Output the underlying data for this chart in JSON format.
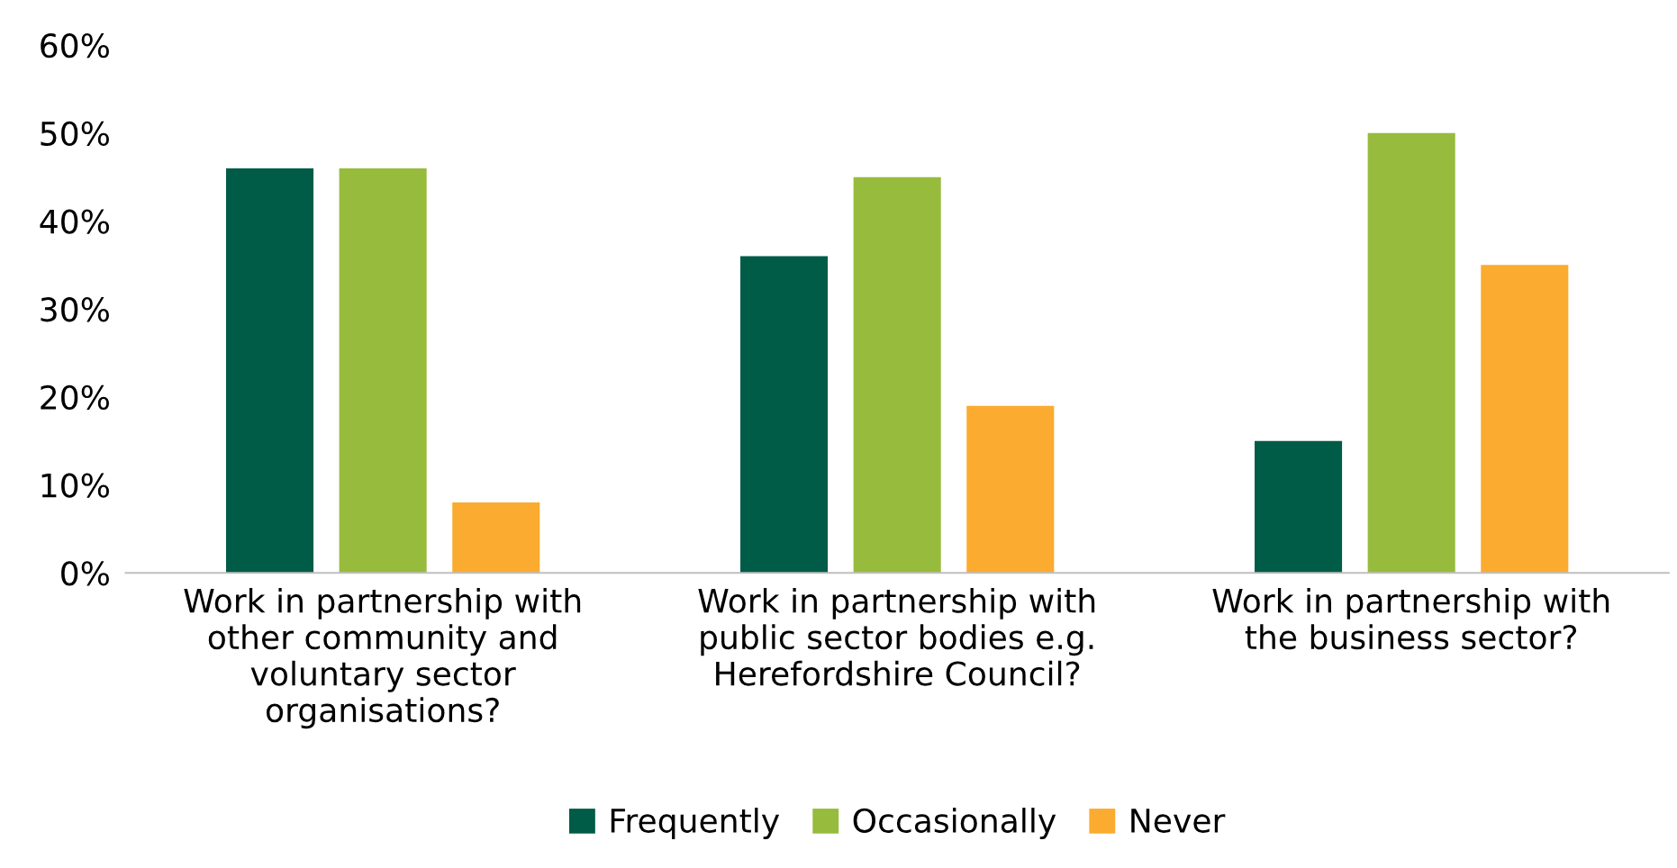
{
  "chart_data": {
    "type": "bar",
    "categories": [
      "Work in partnership with other community and voluntary sector organisations?",
      "Work in partnership with public sector bodies e.g. Herefordshire Council?",
      "Work in partnership with the business sector?"
    ],
    "series": [
      {
        "name": "Frequently",
        "color": "#005c46",
        "values": [
          46,
          36,
          15
        ]
      },
      {
        "name": "Occasionally",
        "color": "#97bb3d",
        "values": [
          46,
          45,
          50
        ]
      },
      {
        "name": "Never",
        "color": "#fbab2f",
        "values": [
          8,
          19,
          35
        ]
      }
    ],
    "ylim": [
      0,
      60
    ],
    "yticks": [
      {
        "value": 0,
        "label": "0%"
      },
      {
        "value": 10,
        "label": "10%"
      },
      {
        "value": 20,
        "label": "20%"
      },
      {
        "value": 30,
        "label": "30%"
      },
      {
        "value": 40,
        "label": "40%"
      },
      {
        "value": 50,
        "label": "50%"
      },
      {
        "value": 60,
        "label": "60%"
      }
    ],
    "grid": false,
    "legend": "bottom"
  }
}
